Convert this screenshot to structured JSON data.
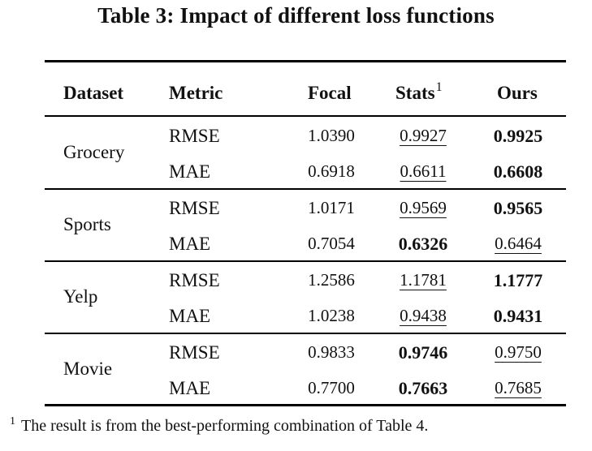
{
  "title": "Table 3: Impact of different loss functions",
  "columns": {
    "dataset": "Dataset",
    "metric": "Metric",
    "focal": "Focal",
    "stats": "Stats",
    "stats_sup": "1",
    "ours": "Ours"
  },
  "groups": [
    {
      "dataset": "Grocery",
      "rows": [
        {
          "metric": "RMSE",
          "focal": "1.0390",
          "stats": "0.9927",
          "ours": "0.9925",
          "bold": "ours",
          "underline": "stats"
        },
        {
          "metric": "MAE",
          "focal": "0.6918",
          "stats": "0.6611",
          "ours": "0.6608",
          "bold": "ours",
          "underline": "stats"
        }
      ]
    },
    {
      "dataset": "Sports",
      "rows": [
        {
          "metric": "RMSE",
          "focal": "1.0171",
          "stats": "0.9569",
          "ours": "0.9565",
          "bold": "ours",
          "underline": "stats"
        },
        {
          "metric": "MAE",
          "focal": "0.7054",
          "stats": "0.6326",
          "ours": "0.6464",
          "bold": "stats",
          "underline": "ours"
        }
      ]
    },
    {
      "dataset": "Yelp",
      "rows": [
        {
          "metric": "RMSE",
          "focal": "1.2586",
          "stats": "1.1781",
          "ours": "1.1777",
          "bold": "ours",
          "underline": "stats"
        },
        {
          "metric": "MAE",
          "focal": "1.0238",
          "stats": "0.9438",
          "ours": "0.9431",
          "bold": "ours",
          "underline": "stats"
        }
      ]
    },
    {
      "dataset": "Movie",
      "rows": [
        {
          "metric": "RMSE",
          "focal": "0.9833",
          "stats": "0.9746",
          "ours": "0.9750",
          "bold": "stats",
          "underline": "ours"
        },
        {
          "metric": "MAE",
          "focal": "0.7700",
          "stats": "0.7663",
          "ours": "0.7685",
          "bold": "stats",
          "underline": "ours"
        }
      ]
    }
  ],
  "footnote": {
    "mark": "1",
    "text": "The result is from the best-performing combination of Table 4."
  }
}
